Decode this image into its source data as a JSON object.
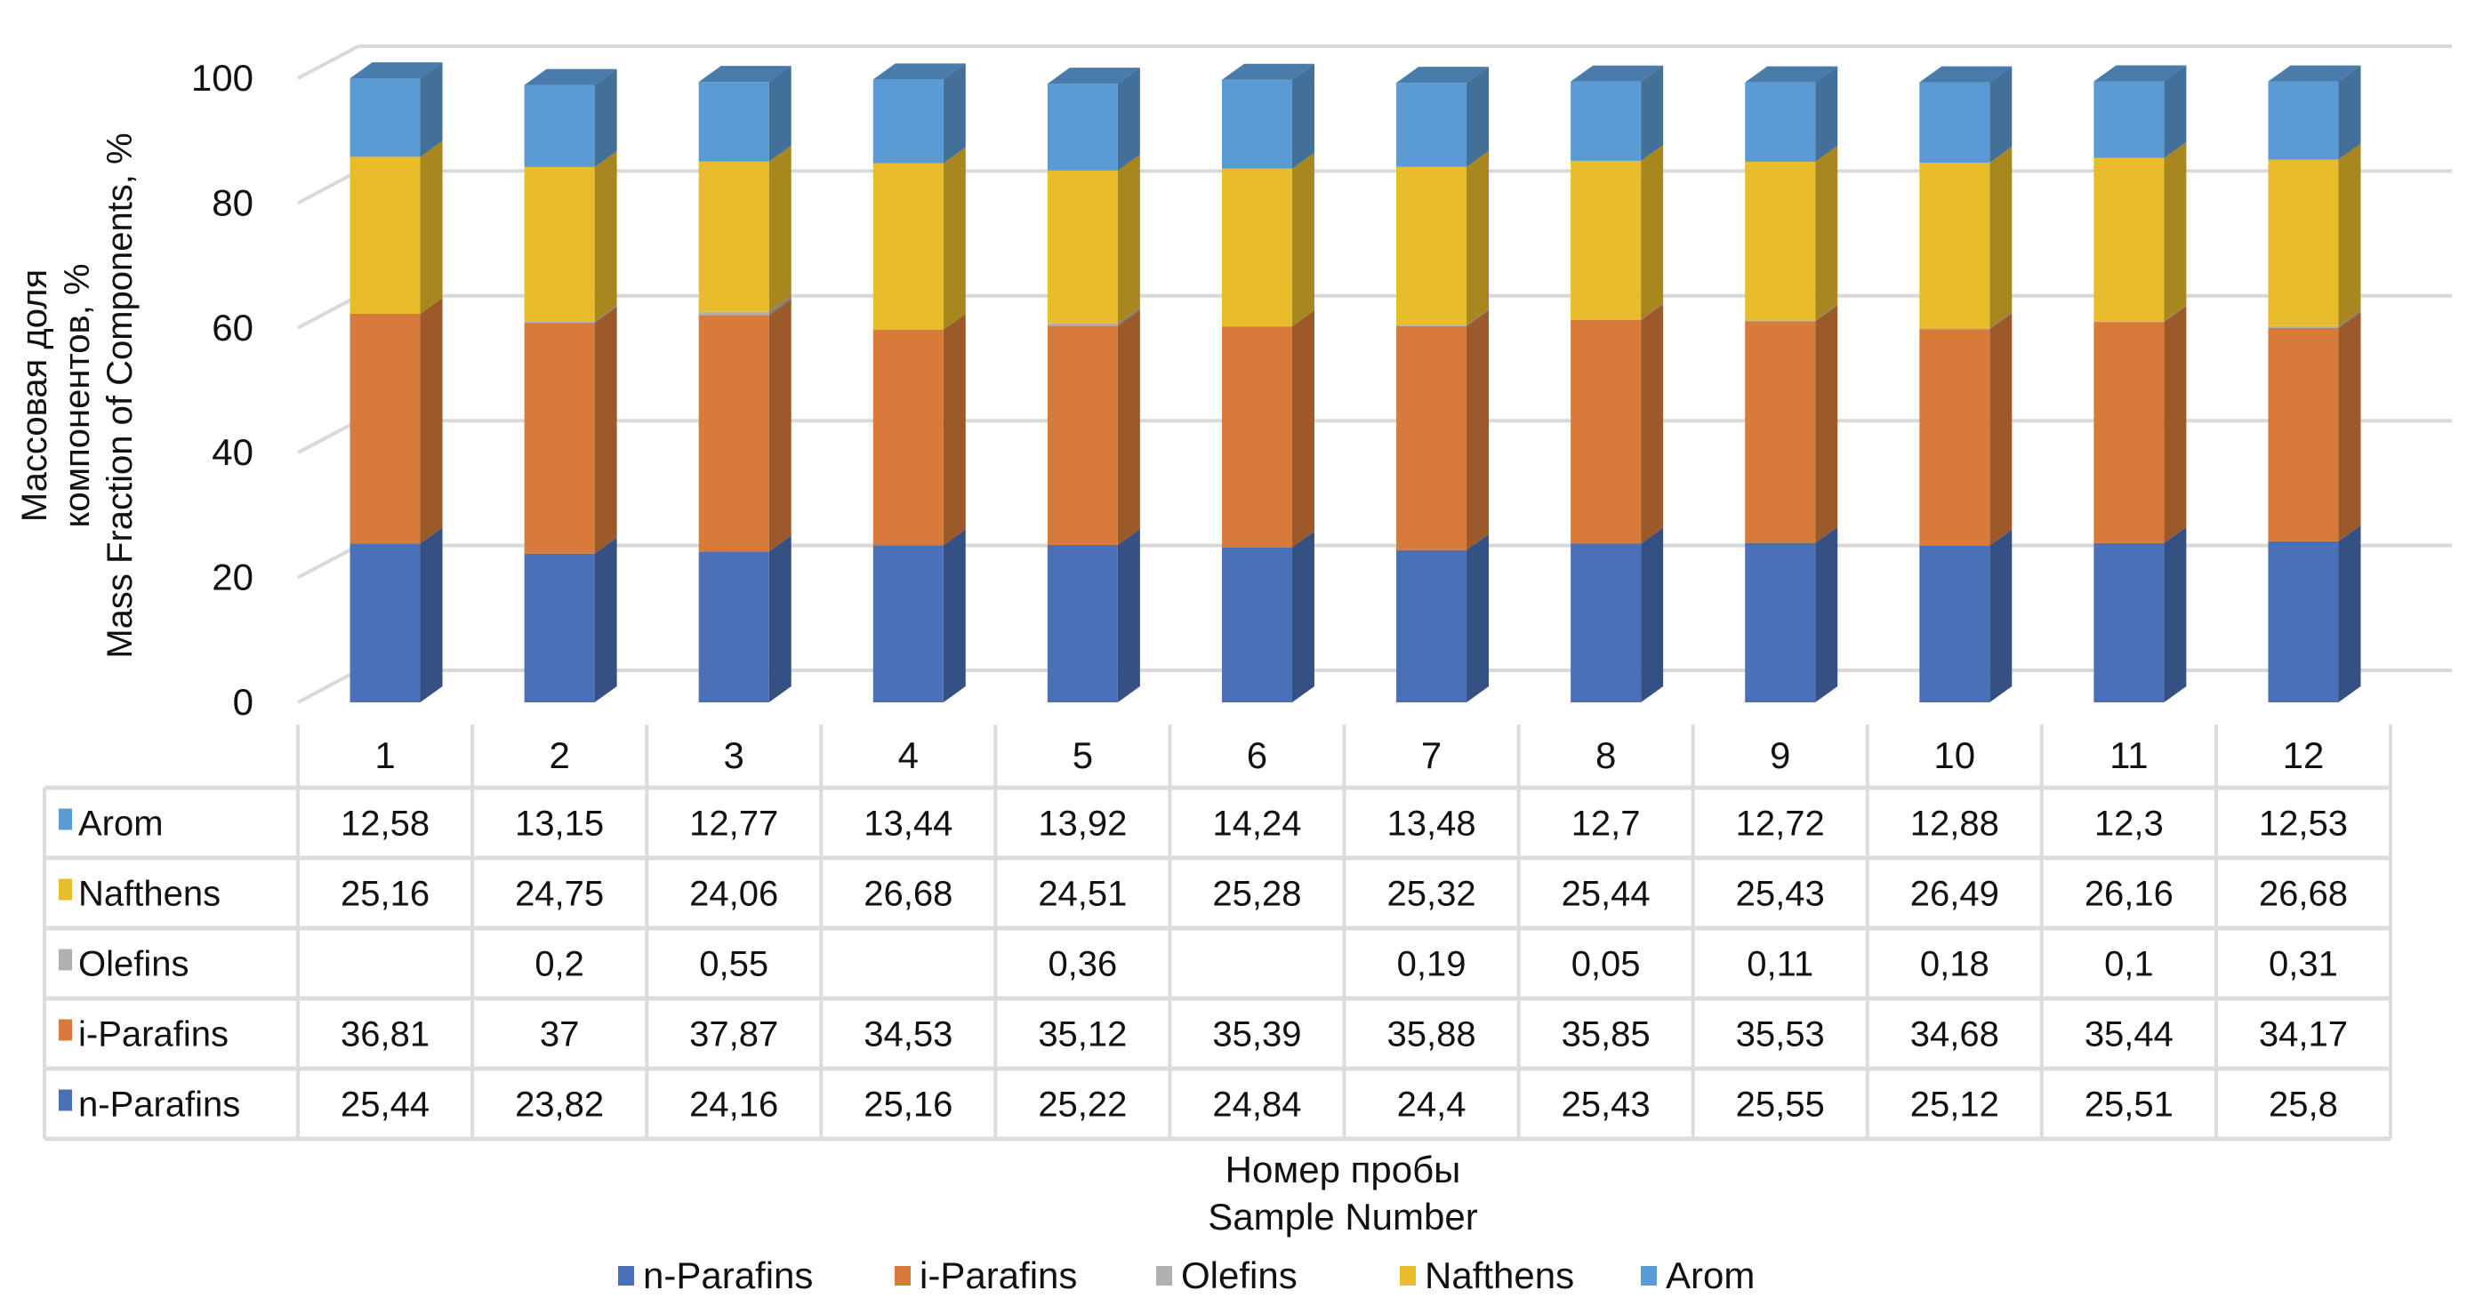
{
  "chart_data": {
    "type": "bar",
    "subtype": "stacked-3d-with-data-table",
    "categories": [
      "1",
      "2",
      "3",
      "4",
      "5",
      "6",
      "7",
      "8",
      "9",
      "10",
      "11",
      "12"
    ],
    "ylabel_lines": [
      "Массовая доля",
      "компонентов, %",
      "Mass Fraction of Components, %"
    ],
    "xlabel_lines": [
      "Номер пробы",
      "Sample Number"
    ],
    "ylim": [
      0,
      100
    ],
    "yticks": [
      0,
      20,
      40,
      60,
      80,
      100
    ],
    "grid": true,
    "legend_position": "bottom",
    "series": [
      {
        "name": "n-Parafins",
        "color": "#4A70B8",
        "values": [
          25.44,
          23.82,
          24.16,
          25.16,
          25.22,
          24.84,
          24.4,
          25.43,
          25.55,
          25.12,
          25.51,
          25.8
        ],
        "labels": [
          "25,44",
          "23,82",
          "24,16",
          "25,16",
          "25,22",
          "24,84",
          "24,4",
          "25,43",
          "25,55",
          "25,12",
          "25,51",
          "25,8"
        ]
      },
      {
        "name": "i-Parafins",
        "color": "#D87B3A",
        "values": [
          36.81,
          37,
          37.87,
          34.53,
          35.12,
          35.39,
          35.88,
          35.85,
          35.53,
          34.68,
          35.44,
          34.17
        ],
        "labels": [
          "36,81",
          "37",
          "37,87",
          "34,53",
          "35,12",
          "35,39",
          "35,88",
          "35,85",
          "35,53",
          "34,68",
          "35,44",
          "34,17"
        ]
      },
      {
        "name": "Olefins",
        "color": "#B0B0B0",
        "values": [
          0,
          0.2,
          0.55,
          0,
          0.36,
          0,
          0.19,
          0.05,
          0.11,
          0.18,
          0.1,
          0.31
        ],
        "labels": [
          "",
          "0,2",
          "0,55",
          "",
          "0,36",
          "",
          "0,19",
          "0,05",
          "0,11",
          "0,18",
          "0,1",
          "0,31"
        ]
      },
      {
        "name": "Nafthens",
        "color": "#E8BC2A",
        "values": [
          25.16,
          24.75,
          24.06,
          26.68,
          24.51,
          25.28,
          25.32,
          25.44,
          25.43,
          26.49,
          26.16,
          26.68
        ],
        "labels": [
          "25,16",
          "24,75",
          "24,06",
          "26,68",
          "24,51",
          "25,28",
          "25,32",
          "25,44",
          "25,43",
          "26,49",
          "26,16",
          "26,68"
        ]
      },
      {
        "name": "Arom",
        "color": "#5B9BD5",
        "values": [
          12.58,
          13.15,
          12.77,
          13.44,
          13.92,
          14.24,
          13.48,
          12.7,
          12.72,
          12.88,
          12.3,
          12.53
        ],
        "labels": [
          "12,58",
          "13,15",
          "12,77",
          "13,44",
          "13,92",
          "14,24",
          "13,48",
          "12,7",
          "12,72",
          "12,88",
          "12,3",
          "12,53"
        ]
      }
    ],
    "table_row_order": [
      "Arom",
      "Nafthens",
      "Olefins",
      "i-Parafins",
      "n-Parafins"
    ]
  }
}
